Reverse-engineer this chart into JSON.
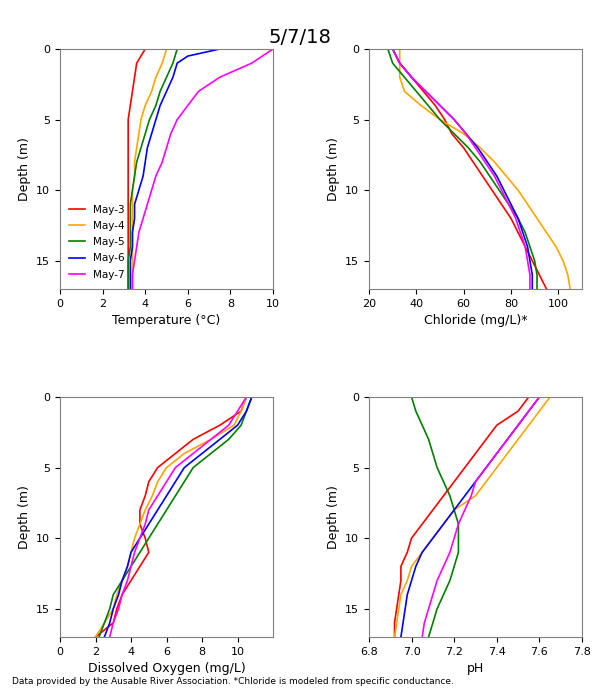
{
  "title": "5/7/18",
  "footnote": "Data provided by the Ausable River Association. *Chloride is modeled from specific conductance.",
  "series_labels": [
    "May-3",
    "May-4",
    "May-5",
    "May-6",
    "May-7"
  ],
  "colors": [
    "red",
    "orange",
    "green",
    "blue",
    "magenta"
  ],
  "temp": {
    "xlabel": "Temperature (°C)",
    "xlim": [
      0,
      10
    ],
    "xticks": [
      0,
      2,
      4,
      6,
      8,
      10
    ],
    "ylim": [
      17,
      0
    ],
    "yticks": [
      0,
      5,
      10,
      15
    ],
    "may3_depth": [
      0,
      0.5,
      1,
      2,
      3,
      4,
      5,
      6,
      7,
      8,
      9,
      10,
      11,
      12,
      13,
      14,
      15,
      16,
      17
    ],
    "may3_val": [
      4.0,
      3.8,
      3.6,
      3.5,
      3.4,
      3.3,
      3.2,
      3.2,
      3.2,
      3.2,
      3.2,
      3.2,
      3.2,
      3.2,
      3.2,
      3.2,
      3.2,
      3.2,
      3.2
    ],
    "may4_depth": [
      0,
      1,
      2,
      3,
      4,
      5,
      6,
      7,
      8,
      9,
      10,
      11,
      12,
      13,
      14,
      15,
      16,
      17
    ],
    "may4_val": [
      5.0,
      4.8,
      4.5,
      4.3,
      4.0,
      3.8,
      3.7,
      3.6,
      3.5,
      3.5,
      3.4,
      3.4,
      3.4,
      3.4,
      3.4,
      3.4,
      3.4,
      3.4
    ],
    "may5_depth": [
      0,
      1,
      2,
      3,
      4,
      5,
      6,
      7,
      8,
      9,
      10,
      11,
      12,
      13,
      14,
      15,
      16,
      17
    ],
    "may5_val": [
      5.5,
      5.3,
      5.0,
      4.7,
      4.5,
      4.2,
      4.0,
      3.8,
      3.6,
      3.5,
      3.4,
      3.3,
      3.3,
      3.3,
      3.3,
      3.2,
      3.2,
      3.2
    ],
    "may6_depth": [
      0,
      0.5,
      1,
      2,
      3,
      4,
      5,
      6,
      7,
      8,
      9,
      10,
      11,
      12,
      13,
      14,
      15,
      16,
      17
    ],
    "may6_val": [
      7.5,
      6.0,
      5.5,
      5.3,
      5.0,
      4.7,
      4.5,
      4.3,
      4.1,
      4.0,
      3.9,
      3.7,
      3.5,
      3.5,
      3.4,
      3.4,
      3.3,
      3.3,
      3.3
    ],
    "may7_depth": [
      0,
      1,
      2,
      3,
      4,
      5,
      6,
      7,
      8,
      9,
      10,
      11,
      12,
      13,
      14,
      15,
      16,
      17
    ],
    "may7_val": [
      10.0,
      9.0,
      7.5,
      6.5,
      6.0,
      5.5,
      5.2,
      5.0,
      4.8,
      4.5,
      4.3,
      4.1,
      3.9,
      3.7,
      3.6,
      3.5,
      3.4,
      3.4
    ]
  },
  "chloride": {
    "xlabel": "Chloride (mg/L)*",
    "xlim": [
      20,
      110
    ],
    "xticks": [
      20,
      40,
      60,
      80,
      100
    ],
    "ylim": [
      17,
      0
    ],
    "yticks": [
      0,
      5,
      10,
      15
    ],
    "may3_depth": [
      0,
      1,
      2,
      3,
      4,
      5,
      6,
      7,
      8,
      9,
      10,
      11,
      12,
      13,
      14,
      15,
      16,
      17
    ],
    "may3_val": [
      30,
      33,
      38,
      43,
      48,
      52,
      55,
      60,
      64,
      68,
      72,
      76,
      80,
      83,
      86,
      89,
      92,
      95
    ],
    "may4_depth": [
      0,
      1,
      2,
      3,
      4,
      5,
      6,
      7,
      8,
      9,
      10,
      11,
      12,
      13,
      14,
      15,
      16,
      17
    ],
    "may4_val": [
      33,
      33,
      33,
      35,
      42,
      50,
      60,
      67,
      73,
      78,
      83,
      87,
      91,
      95,
      99,
      102,
      104,
      105
    ],
    "may5_depth": [
      0,
      1,
      2,
      3,
      4,
      5,
      6,
      7,
      8,
      9,
      10,
      11,
      12,
      13,
      14,
      15,
      16,
      17
    ],
    "may5_val": [
      28,
      30,
      35,
      40,
      45,
      50,
      56,
      62,
      67,
      71,
      75,
      79,
      83,
      86,
      88,
      90,
      91,
      91
    ],
    "may6_depth": [
      0,
      1,
      2,
      3,
      4,
      5,
      6,
      7,
      8,
      9,
      10,
      11,
      12,
      13,
      14,
      15,
      16,
      17
    ],
    "may6_val": [
      30,
      33,
      38,
      44,
      50,
      56,
      61,
      66,
      70,
      74,
      77,
      80,
      83,
      85,
      87,
      88,
      89,
      89
    ],
    "may7_depth": [
      0,
      1,
      2,
      3,
      4,
      5,
      6,
      7,
      8,
      9,
      10,
      11,
      12,
      13,
      14,
      15,
      16,
      17
    ],
    "may7_val": [
      30,
      33,
      38,
      44,
      50,
      56,
      61,
      65,
      69,
      73,
      76,
      79,
      82,
      84,
      86,
      87,
      88,
      88
    ]
  },
  "do": {
    "xlabel": "Dissolved Oxygen (mg/L)",
    "xlim": [
      0,
      12
    ],
    "xticks": [
      0,
      2,
      4,
      6,
      8,
      10
    ],
    "ylim": [
      17,
      0
    ],
    "yticks": [
      0,
      5,
      10,
      15
    ],
    "may3_depth": [
      0,
      1,
      2,
      3,
      4,
      5,
      6,
      7,
      8,
      9,
      10,
      11,
      12,
      13,
      14,
      15,
      16,
      17
    ],
    "may3_val": [
      10.5,
      10.2,
      9.0,
      7.5,
      6.5,
      5.5,
      5.0,
      4.8,
      4.5,
      4.5,
      4.8,
      5.0,
      4.5,
      4.0,
      3.5,
      3.2,
      3.0,
      2.0
    ],
    "may4_depth": [
      0,
      1,
      2,
      3,
      4,
      5,
      6,
      7,
      8,
      9,
      10,
      11,
      12,
      13,
      14,
      15,
      16,
      17
    ],
    "may4_val": [
      10.5,
      10.2,
      9.8,
      8.5,
      7.0,
      6.0,
      5.5,
      5.2,
      4.8,
      4.5,
      4.2,
      4.0,
      3.8,
      3.5,
      3.2,
      3.0,
      2.5,
      2.0
    ],
    "may5_depth": [
      0,
      1,
      2,
      3,
      4,
      5,
      6,
      7,
      8,
      9,
      10,
      11,
      12,
      13,
      14,
      15,
      16,
      17
    ],
    "may5_val": [
      10.8,
      10.5,
      10.2,
      9.5,
      8.5,
      7.5,
      7.0,
      6.5,
      6.0,
      5.5,
      5.0,
      4.5,
      4.0,
      3.5,
      3.0,
      2.8,
      2.5,
      2.2
    ],
    "may6_depth": [
      0,
      1,
      2,
      3,
      4,
      5,
      6,
      7,
      8,
      9,
      10,
      11,
      12,
      13,
      14,
      15,
      16,
      17
    ],
    "may6_val": [
      10.8,
      10.5,
      10.0,
      9.0,
      8.0,
      7.0,
      6.5,
      6.0,
      5.5,
      5.0,
      4.5,
      4.0,
      3.8,
      3.5,
      3.3,
      3.0,
      2.8,
      2.5
    ],
    "may7_depth": [
      0,
      1,
      2,
      3,
      4,
      5,
      6,
      7,
      8,
      9,
      10,
      11,
      12,
      13,
      14,
      15,
      16,
      17
    ],
    "may7_val": [
      10.5,
      10.0,
      9.5,
      8.5,
      7.5,
      6.5,
      6.0,
      5.5,
      5.0,
      4.8,
      4.5,
      4.2,
      4.0,
      3.8,
      3.5,
      3.3,
      3.0,
      2.8
    ]
  },
  "ph": {
    "xlabel": "pH",
    "xlim": [
      6.8,
      7.8
    ],
    "xticks": [
      6.8,
      7.0,
      7.2,
      7.4,
      7.6,
      7.8
    ],
    "ylim": [
      17,
      0
    ],
    "yticks": [
      0,
      5,
      10,
      15
    ],
    "may3_depth": [
      0,
      1,
      2,
      3,
      4,
      5,
      6,
      7,
      8,
      9,
      10,
      11,
      12,
      13,
      14,
      15,
      16,
      17
    ],
    "may3_val": [
      7.55,
      7.5,
      7.4,
      7.35,
      7.3,
      7.25,
      7.2,
      7.15,
      7.1,
      7.05,
      7.0,
      6.98,
      6.95,
      6.95,
      6.94,
      6.93,
      6.92,
      6.92
    ],
    "may4_depth": [
      0,
      1,
      2,
      3,
      4,
      5,
      6,
      7,
      8,
      9,
      10,
      11,
      12,
      13,
      14,
      15,
      16,
      17
    ],
    "may4_val": [
      7.65,
      7.6,
      7.55,
      7.5,
      7.45,
      7.4,
      7.35,
      7.3,
      7.2,
      7.15,
      7.1,
      7.05,
      7.0,
      6.98,
      6.95,
      6.94,
      6.93,
      6.92
    ],
    "may5_depth": [
      0,
      1,
      2,
      3,
      4,
      5,
      6,
      7,
      8,
      9,
      10,
      11,
      12,
      13,
      14,
      15,
      16,
      17
    ],
    "may5_val": [
      7.0,
      7.02,
      7.05,
      7.08,
      7.1,
      7.12,
      7.15,
      7.18,
      7.2,
      7.22,
      7.22,
      7.22,
      7.2,
      7.18,
      7.15,
      7.12,
      7.1,
      7.08
    ],
    "may6_depth": [
      0,
      1,
      2,
      3,
      4,
      5,
      6,
      7,
      8,
      9,
      10,
      11,
      12,
      13,
      14,
      15,
      16,
      17
    ],
    "may6_val": [
      7.6,
      7.55,
      7.5,
      7.45,
      7.4,
      7.35,
      7.3,
      7.25,
      7.2,
      7.15,
      7.1,
      7.05,
      7.02,
      7.0,
      6.98,
      6.97,
      6.96,
      6.95
    ],
    "may7_depth": [
      0,
      1,
      2,
      3,
      4,
      5,
      6,
      7,
      8,
      9,
      10,
      11,
      12,
      13,
      14,
      15,
      16,
      17
    ],
    "may7_val": [
      7.6,
      7.55,
      7.5,
      7.45,
      7.4,
      7.35,
      7.3,
      7.28,
      7.25,
      7.22,
      7.2,
      7.18,
      7.15,
      7.12,
      7.1,
      7.08,
      7.06,
      7.05
    ]
  }
}
